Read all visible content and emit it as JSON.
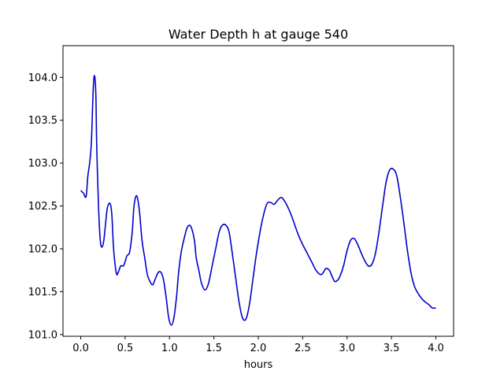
{
  "chart_data": {
    "type": "line",
    "title": "Water Depth h at gauge 540",
    "xlabel": "hours",
    "ylabel": "",
    "xlim": [
      -0.2,
      4.2
    ],
    "ylim": [
      100.98,
      104.37
    ],
    "xticks": [
      0.0,
      0.5,
      1.0,
      1.5,
      2.0,
      2.5,
      3.0,
      3.5,
      4.0
    ],
    "xtick_labels": [
      "0.0",
      "0.5",
      "1.0",
      "1.5",
      "2.0",
      "2.5",
      "3.0",
      "3.5",
      "4.0"
    ],
    "yticks": [
      101.0,
      101.5,
      102.0,
      102.5,
      103.0,
      103.5,
      104.0
    ],
    "ytick_labels": [
      "101.0",
      "101.5",
      "102.0",
      "102.5",
      "103.0",
      "103.5",
      "104.0"
    ],
    "grid": false,
    "series": [
      {
        "color": "#0000cc",
        "x": [
          0.0,
          0.03,
          0.06,
          0.08,
          0.1,
          0.12,
          0.14,
          0.155,
          0.17,
          0.18,
          0.2,
          0.22,
          0.24,
          0.26,
          0.28,
          0.3,
          0.33,
          0.35,
          0.37,
          0.4,
          0.42,
          0.45,
          0.48,
          0.5,
          0.52,
          0.55,
          0.58,
          0.6,
          0.63,
          0.66,
          0.69,
          0.72,
          0.75,
          0.78,
          0.81,
          0.84,
          0.87,
          0.9,
          0.93,
          0.96,
          0.99,
          1.02,
          1.05,
          1.08,
          1.1,
          1.13,
          1.16,
          1.2,
          1.24,
          1.28,
          1.3,
          1.33,
          1.36,
          1.4,
          1.44,
          1.48,
          1.52,
          1.56,
          1.6,
          1.64,
          1.67,
          1.7,
          1.74,
          1.78,
          1.82,
          1.86,
          1.9,
          1.94,
          1.98,
          2.02,
          2.06,
          2.1,
          2.14,
          2.18,
          2.22,
          2.26,
          2.3,
          2.34,
          2.38,
          2.42,
          2.46,
          2.5,
          2.55,
          2.6,
          2.65,
          2.7,
          2.73,
          2.76,
          2.8,
          2.83,
          2.86,
          2.89,
          2.92,
          2.96,
          3.0,
          3.04,
          3.08,
          3.12,
          3.16,
          3.2,
          3.24,
          3.28,
          3.32,
          3.36,
          3.4,
          3.44,
          3.48,
          3.52,
          3.56,
          3.6,
          3.64,
          3.68,
          3.72,
          3.76,
          3.8,
          3.84,
          3.88,
          3.92,
          3.96,
          4.0
        ],
        "y": [
          102.68,
          102.65,
          102.61,
          102.85,
          103.0,
          103.25,
          103.85,
          104.02,
          103.8,
          103.2,
          102.5,
          102.1,
          102.02,
          102.1,
          102.3,
          102.48,
          102.53,
          102.4,
          102.0,
          101.72,
          101.72,
          101.8,
          101.8,
          101.85,
          101.92,
          101.96,
          102.2,
          102.5,
          102.62,
          102.45,
          102.1,
          101.9,
          101.7,
          101.62,
          101.58,
          101.65,
          101.72,
          101.73,
          101.65,
          101.45,
          101.2,
          101.11,
          101.2,
          101.45,
          101.7,
          101.95,
          102.1,
          102.25,
          102.26,
          102.1,
          101.9,
          101.75,
          101.6,
          101.52,
          101.6,
          101.8,
          102.0,
          102.2,
          102.28,
          102.27,
          102.2,
          102.0,
          101.7,
          101.4,
          101.2,
          101.18,
          101.35,
          101.65,
          101.95,
          102.2,
          102.4,
          102.53,
          102.54,
          102.52,
          102.57,
          102.6,
          102.55,
          102.47,
          102.37,
          102.25,
          102.14,
          102.05,
          101.95,
          101.85,
          101.75,
          101.7,
          101.72,
          101.77,
          101.75,
          101.68,
          101.62,
          101.63,
          101.68,
          101.8,
          101.98,
          102.1,
          102.12,
          102.05,
          101.95,
          101.86,
          101.8,
          101.82,
          101.95,
          102.2,
          102.5,
          102.78,
          102.92,
          102.93,
          102.85,
          102.6,
          102.3,
          101.98,
          101.72,
          101.56,
          101.48,
          101.42,
          101.38,
          101.35,
          101.31,
          101.31
        ]
      }
    ]
  }
}
